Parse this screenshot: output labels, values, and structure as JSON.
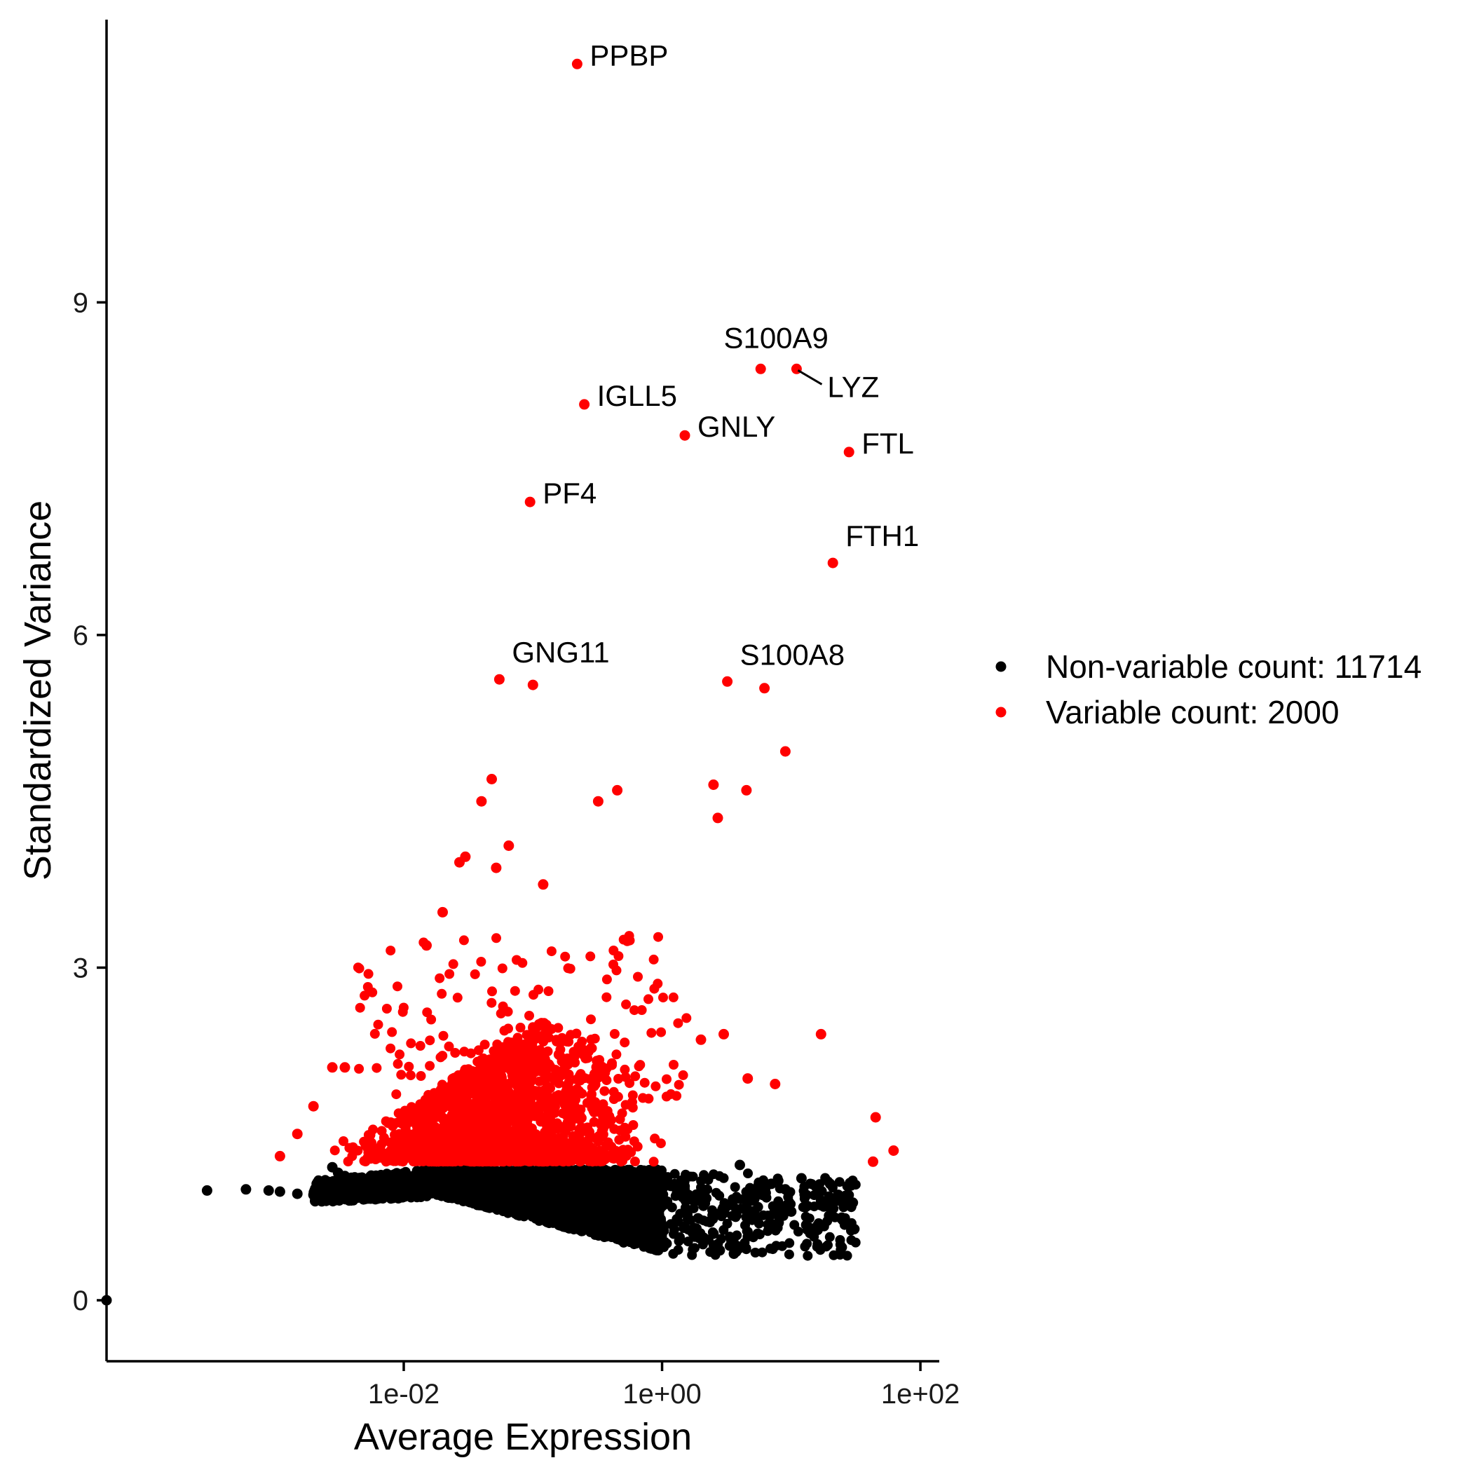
{
  "chart_data": {
    "type": "scatter",
    "title": "",
    "xlabel": "Average Expression",
    "ylabel": "Standardized Variance",
    "x_scale": "log10",
    "xlim": [
      5e-05,
      140
    ],
    "ylim": [
      -0.55,
      11.55
    ],
    "x_ticks": [
      {
        "value": 0.01,
        "label": "1e-02"
      },
      {
        "value": 1,
        "label": "1e+00"
      },
      {
        "value": 100,
        "label": "1e+02"
      }
    ],
    "y_ticks": [
      {
        "value": 0,
        "label": "0"
      },
      {
        "value": 3,
        "label": "3"
      },
      {
        "value": 6,
        "label": "6"
      },
      {
        "value": 9,
        "label": "9"
      }
    ],
    "grid": false,
    "legend_position": "right",
    "series": [
      {
        "name": "Non-variable count: 11714",
        "color": "#000000",
        "count": 11714,
        "points": [
          [
            5e-05,
            0.0
          ],
          [
            0.0003,
            0.99
          ],
          [
            0.0006,
            1.0
          ],
          [
            0.0009,
            0.99
          ],
          [
            0.0011,
            0.98
          ],
          [
            0.0015,
            0.96
          ],
          [
            0.002,
            0.95
          ],
          [
            0.0024,
            0.94
          ],
          [
            0.0028,
            1.2
          ],
          [
            0.0031,
            1.15
          ],
          [
            0.0035,
            1.12
          ],
          [
            0.004,
            1.1
          ],
          [
            0.0045,
            1.08
          ],
          [
            0.005,
            1.05
          ],
          [
            1.3,
            1.0
          ],
          [
            1.6,
            0.95
          ],
          [
            1.9,
            0.9
          ],
          [
            2.2,
            0.92
          ],
          [
            2.5,
            0.6
          ],
          [
            2.8,
            0.45
          ],
          [
            3.2,
            0.85
          ],
          [
            3.6,
            0.42
          ],
          [
            4.0,
            1.22
          ],
          [
            4.5,
            0.75
          ],
          [
            5.0,
            0.9
          ],
          [
            5.5,
            0.6
          ],
          [
            6.0,
            0.95
          ],
          [
            7.0,
            1.05
          ],
          [
            8.0,
            0.7
          ],
          [
            9.0,
            1.0
          ],
          [
            10.0,
            0.8
          ],
          [
            12.0,
            1.1
          ],
          [
            14.0,
            0.65
          ],
          [
            17.0,
            0.9
          ],
          [
            20.0,
            1.05
          ],
          [
            23.0,
            0.95
          ],
          [
            26.0,
            0.9
          ],
          [
            30.0,
            0.88
          ]
        ]
      },
      {
        "name": "Variable count: 2000",
        "color": "#ff0000",
        "count": 2000,
        "points": [
          [
            0.22,
            11.15
          ],
          [
            0.25,
            8.08
          ],
          [
            5.8,
            8.4
          ],
          [
            11.0,
            8.4
          ],
          [
            1.5,
            7.8
          ],
          [
            28.0,
            7.65
          ],
          [
            0.095,
            7.2
          ],
          [
            21.0,
            6.65
          ],
          [
            0.055,
            5.6
          ],
          [
            0.1,
            5.55
          ],
          [
            3.2,
            5.58
          ],
          [
            6.2,
            5.52
          ],
          [
            9.0,
            4.95
          ],
          [
            0.45,
            4.6
          ],
          [
            0.32,
            4.5
          ],
          [
            0.048,
            4.7
          ],
          [
            0.04,
            4.5
          ],
          [
            0.065,
            4.1
          ],
          [
            0.03,
            4.0
          ],
          [
            0.027,
            3.95
          ],
          [
            0.052,
            3.9
          ],
          [
            2.5,
            4.65
          ],
          [
            4.5,
            4.6
          ],
          [
            2.7,
            4.35
          ],
          [
            0.12,
            3.75
          ],
          [
            0.02,
            3.5
          ],
          [
            0.015,
            3.2
          ],
          [
            17.0,
            2.4
          ],
          [
            7.5,
            1.95
          ],
          [
            4.6,
            2.0
          ],
          [
            3.0,
            2.4
          ],
          [
            2.0,
            2.35
          ],
          [
            45.0,
            1.65
          ],
          [
            62.0,
            1.35
          ],
          [
            43.0,
            1.25
          ],
          [
            0.0011,
            1.3
          ],
          [
            0.0015,
            1.5
          ],
          [
            0.002,
            1.75
          ],
          [
            0.0028,
            2.1
          ],
          [
            0.0035,
            2.1
          ]
        ]
      }
    ],
    "annotations": [
      {
        "text": "PPBP",
        "x": 0.22,
        "y": 11.15,
        "placement": "right"
      },
      {
        "text": "S100A9",
        "x": 5.8,
        "y": 8.4,
        "placement": "above"
      },
      {
        "text": "LYZ",
        "x": 11.0,
        "y": 8.4,
        "placement": "below-right-leader"
      },
      {
        "text": "IGLL5",
        "x": 0.25,
        "y": 8.08,
        "placement": "right"
      },
      {
        "text": "GNLY",
        "x": 1.5,
        "y": 7.8,
        "placement": "right"
      },
      {
        "text": "FTL",
        "x": 28.0,
        "y": 7.65,
        "placement": "right"
      },
      {
        "text": "PF4",
        "x": 0.095,
        "y": 7.2,
        "placement": "right"
      },
      {
        "text": "FTH1",
        "x": 21.0,
        "y": 6.65,
        "placement": "above-right"
      },
      {
        "text": "GNG11",
        "x": 0.055,
        "y": 5.6,
        "placement": "above-right"
      },
      {
        "text": "S100A8",
        "x": 3.2,
        "y": 5.58,
        "placement": "above-right"
      }
    ]
  }
}
